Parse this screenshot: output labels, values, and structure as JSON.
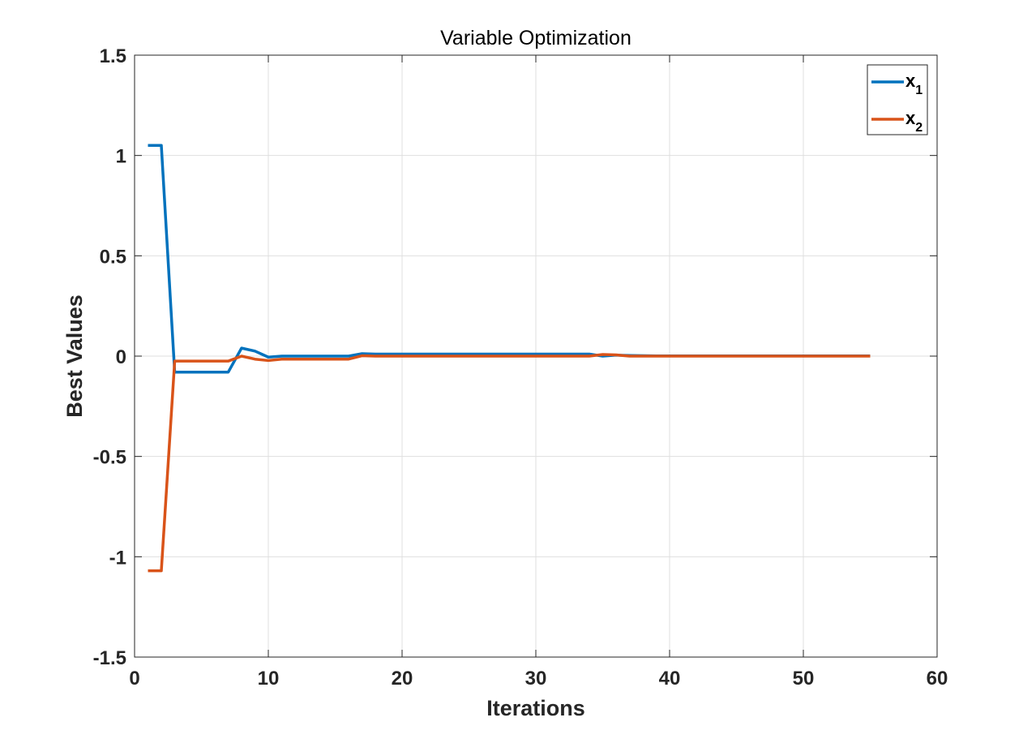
{
  "chart_data": {
    "type": "line",
    "title": "Variable Optimization",
    "xlabel": "Iterations",
    "ylabel": "Best Values",
    "xlim": [
      0,
      60
    ],
    "ylim": [
      -1.5,
      1.5
    ],
    "xticks": [
      0,
      10,
      20,
      30,
      40,
      50,
      60
    ],
    "xtick_labels": [
      "0",
      "10",
      "20",
      "30",
      "40",
      "50",
      "60"
    ],
    "yticks": [
      -1.5,
      -1,
      -0.5,
      0,
      0.5,
      1,
      1.5
    ],
    "ytick_labels": [
      "-1.5",
      "-1",
      "-0.5",
      "0",
      "0.5",
      "1",
      "1.5"
    ],
    "grid": true,
    "legend_position": "top-right",
    "x": [
      1,
      2,
      3,
      4,
      5,
      6,
      7,
      8,
      9,
      10,
      11,
      12,
      13,
      14,
      15,
      16,
      17,
      18,
      19,
      20,
      21,
      22,
      23,
      24,
      25,
      26,
      27,
      28,
      29,
      30,
      31,
      32,
      33,
      34,
      35,
      36,
      37,
      38,
      39,
      40,
      41,
      42,
      43,
      44,
      45,
      46,
      47,
      48,
      49,
      50,
      51,
      52,
      53,
      54,
      55
    ],
    "series": [
      {
        "name": "x",
        "subscript": "1",
        "color": "#0072BD",
        "values": [
          1.05,
          1.05,
          -0.08,
          -0.08,
          -0.08,
          -0.08,
          -0.08,
          0.04,
          0.025,
          -0.005,
          0.0,
          0.0,
          0.0,
          0.0,
          0.0,
          0.0,
          0.012,
          0.01,
          0.01,
          0.01,
          0.01,
          0.01,
          0.01,
          0.01,
          0.01,
          0.01,
          0.01,
          0.01,
          0.01,
          0.01,
          0.01,
          0.01,
          0.01,
          0.01,
          0.0,
          0.005,
          0.003,
          0.002,
          0.001,
          0.001,
          0.001,
          0.001,
          0.001,
          0.001,
          0.001,
          0.001,
          0.001,
          0.001,
          0.001,
          0.001,
          0.001,
          0.001,
          0.001,
          0.001,
          0.001
        ]
      },
      {
        "name": "x",
        "subscript": "2",
        "color": "#D95319",
        "values": [
          -1.07,
          -1.07,
          -0.025,
          -0.025,
          -0.025,
          -0.025,
          -0.025,
          0.0,
          -0.015,
          -0.022,
          -0.015,
          -0.015,
          -0.015,
          -0.015,
          -0.015,
          -0.015,
          0.002,
          0.0,
          0.0,
          0.0,
          0.0,
          0.0,
          0.0,
          0.0,
          0.0,
          0.0,
          0.0,
          0.0,
          0.0,
          0.0,
          0.0,
          0.0,
          0.0,
          0.0,
          0.008,
          0.006,
          0.0,
          0.0,
          0.0,
          0.0,
          0.0,
          0.0,
          0.0,
          0.0,
          0.0,
          0.0,
          0.0,
          0.0,
          0.0,
          0.0,
          0.0,
          0.0,
          0.0,
          0.0,
          0.0
        ]
      }
    ]
  }
}
